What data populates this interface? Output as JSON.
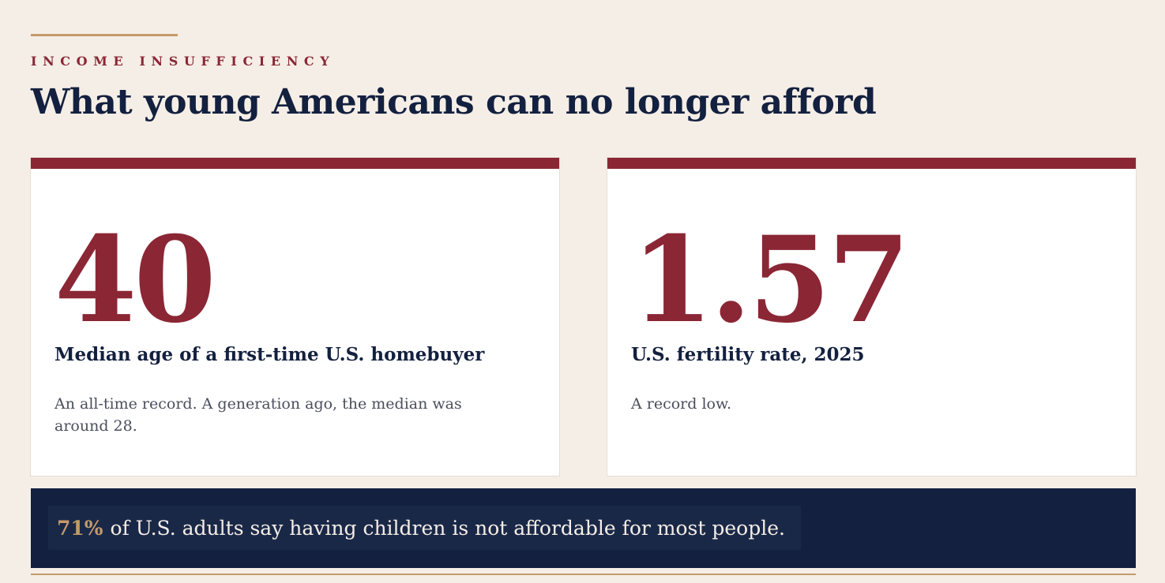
{
  "header": {
    "eyebrow": "INCOME INSUFFICIENCY",
    "title": "What young Americans can no longer afford"
  },
  "cards": [
    {
      "value": "40",
      "label": "Median age of a first-time U.S. homebuyer",
      "description": "An all-time record. A generation ago, the median was around 28."
    },
    {
      "value": "1.57",
      "label": "U.S. fertility rate, 2025",
      "description": "A record low."
    }
  ],
  "banner": {
    "highlight": "71%",
    "text": "of U.S. adults say having children is not affordable for most people."
  },
  "colors": {
    "accent_red": "#8b2635",
    "navy": "#13203f",
    "gold": "#c49a6c",
    "background": "#f5eee6"
  }
}
